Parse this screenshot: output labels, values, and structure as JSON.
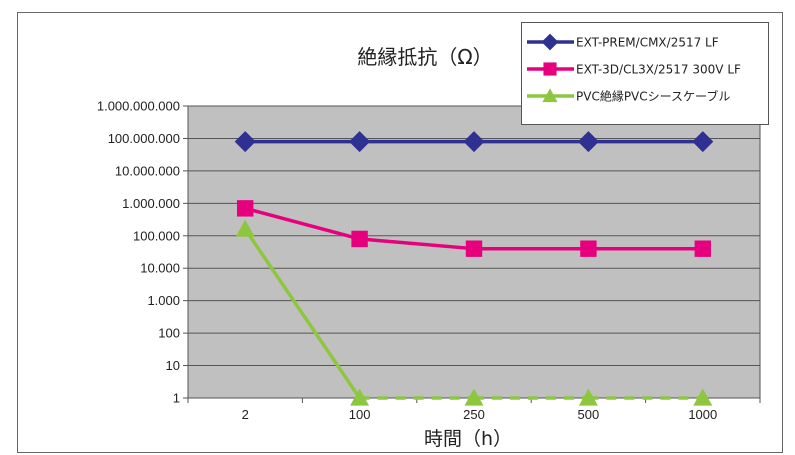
{
  "chart_data": {
    "type": "line",
    "title": "絶縁抵抗（Ω）",
    "xlabel": "時間（h）",
    "ylabel": "",
    "y_scale": "log",
    "ylim": [
      1,
      1000000000
    ],
    "grid": true,
    "legend_position": "top-right",
    "categories": [
      "2",
      "100",
      "250",
      "500",
      "1000"
    ],
    "y_tick_labels": [
      "1",
      "10",
      "100",
      "1.000",
      "10.000",
      "100.000",
      "1.000.000",
      "10.000.000",
      "100.000.000",
      "1.000.000.000"
    ],
    "plot_background": "#c0c0c0",
    "series": [
      {
        "name": "EXT-PREM/CMX/2517 LF",
        "values": [
          80000000,
          80000000,
          80000000,
          80000000,
          80000000
        ],
        "color": "#2e3192",
        "marker": "diamond"
      },
      {
        "name": "EXT-3D/CL3X/2517 300V LF",
        "values": [
          700000,
          80000,
          40000,
          40000,
          40000
        ],
        "color": "#e6007e",
        "marker": "square"
      },
      {
        "name": "PVC絶縁PVCシースケーブル",
        "values": [
          160000,
          1,
          1,
          1,
          1
        ],
        "color": "#8dc63f",
        "marker": "triangle",
        "dashed_from_index": 1
      }
    ]
  }
}
